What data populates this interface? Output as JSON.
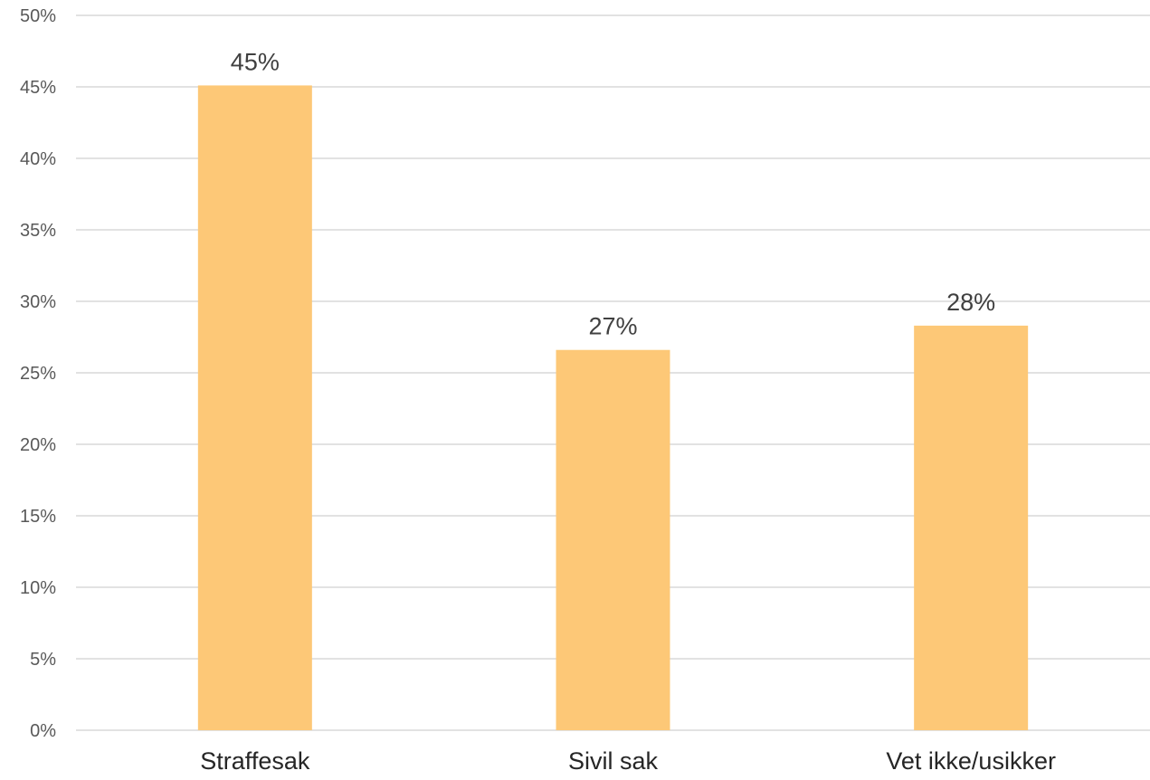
{
  "chart_data": {
    "type": "bar",
    "title": "",
    "xlabel": "",
    "ylabel": "",
    "categories": [
      "Straffesak",
      "Sivil sak",
      "Vet ikke/usikker"
    ],
    "values": [
      45.1,
      26.6,
      28.3
    ],
    "data_labels": [
      "45%",
      "27%",
      "28%"
    ],
    "ylim": [
      0,
      50
    ],
    "yticks": [
      0,
      5,
      10,
      15,
      20,
      25,
      30,
      35,
      40,
      45,
      50
    ],
    "ytick_labels": [
      "0%",
      "5%",
      "10%",
      "15%",
      "20%",
      "25%",
      "30%",
      "35%",
      "40%",
      "45%",
      "50%"
    ],
    "grid": true,
    "legend": "none",
    "bar_color": "#fdc877"
  }
}
